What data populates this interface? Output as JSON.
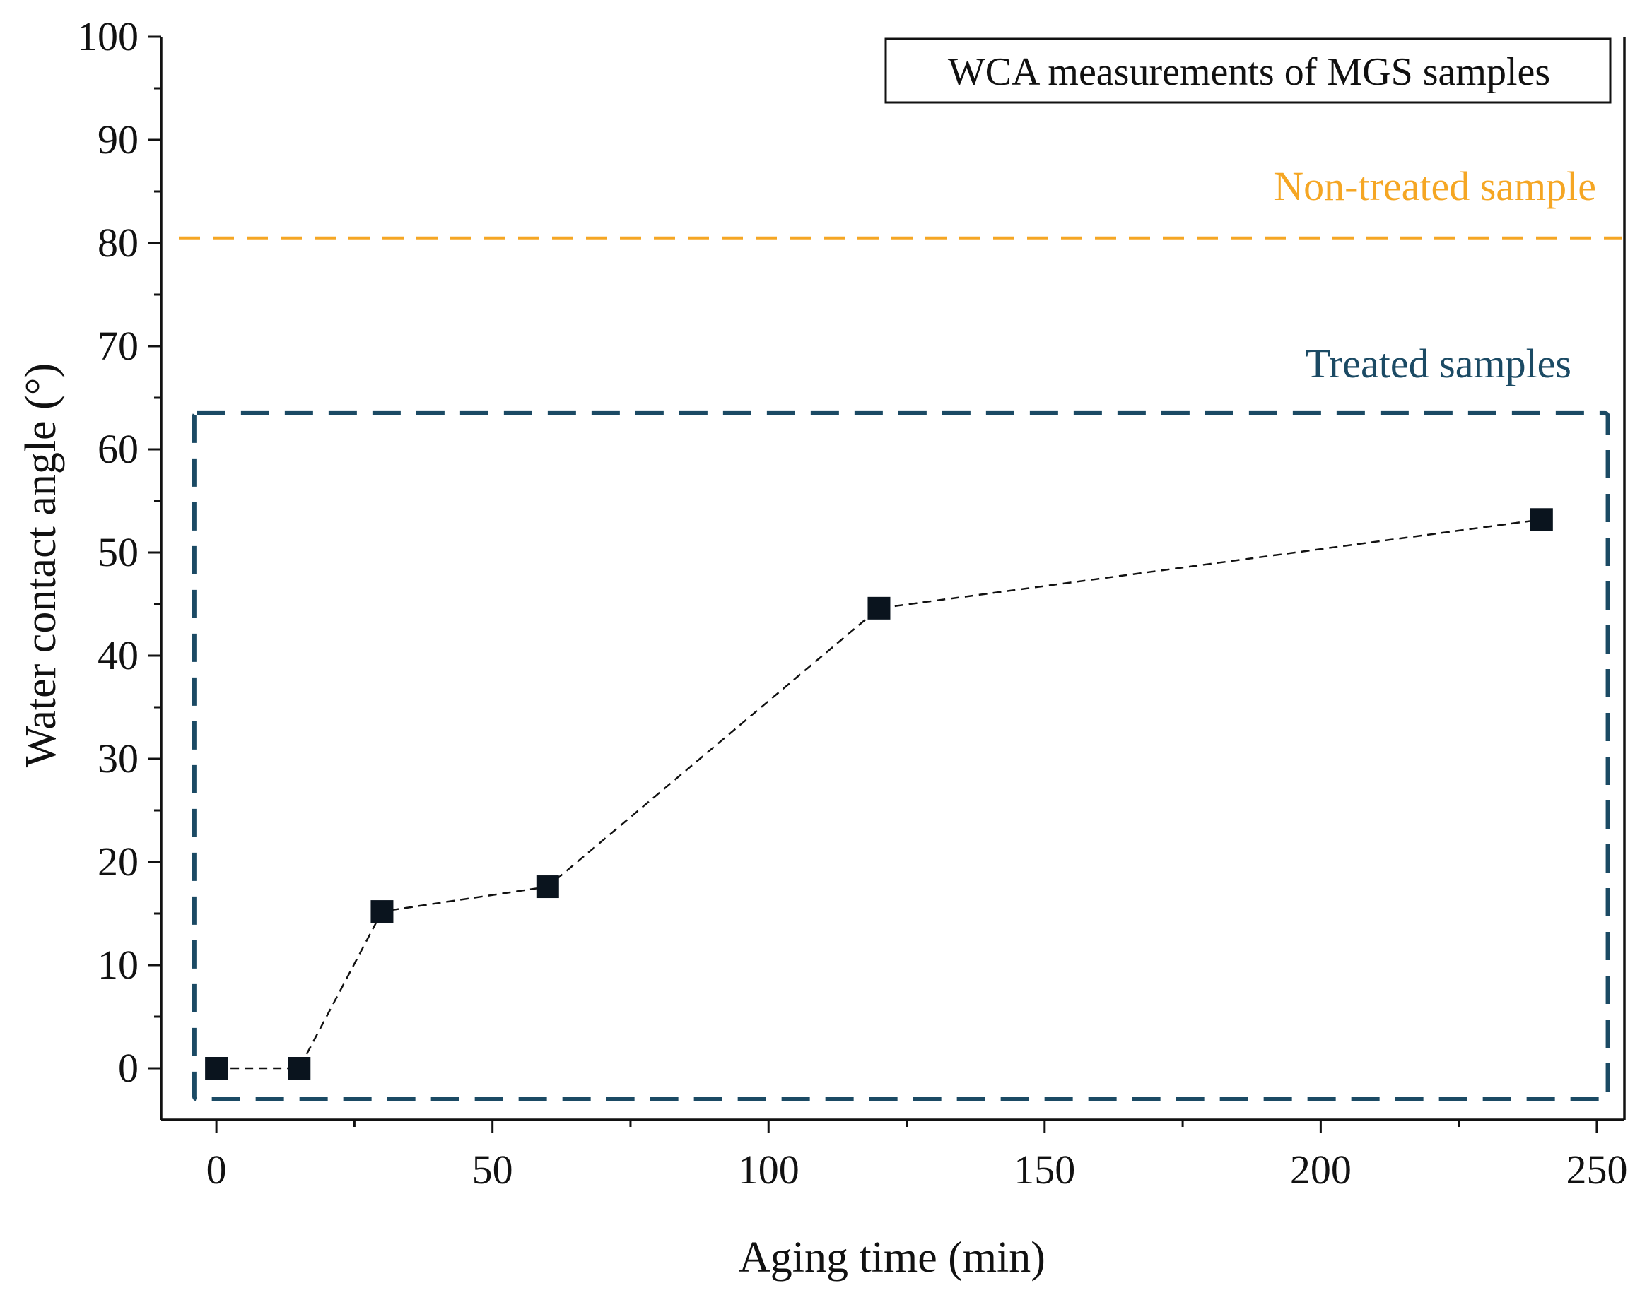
{
  "chart_data": {
    "type": "scatter",
    "title": "WCA measurements of MGS samples",
    "xlabel": "Aging time (min)",
    "ylabel": "Water contact angle (°)",
    "xlim": [
      -10,
      255
    ],
    "ylim": [
      -5,
      100
    ],
    "xticks": [
      0,
      50,
      100,
      150,
      200,
      250
    ],
    "yticks": [
      0,
      10,
      20,
      30,
      40,
      50,
      60,
      70,
      80,
      90,
      100
    ],
    "series": [
      {
        "name": "Treated samples",
        "color": "#0a141e",
        "marker": "square",
        "line": "dashed",
        "x": [
          0,
          15,
          30,
          60,
          120,
          240
        ],
        "y": [
          0,
          0,
          15.2,
          17.6,
          44.6,
          53.2
        ]
      }
    ],
    "reference_lines": [
      {
        "label": "Non-treated sample",
        "y": 80.5,
        "color": "#f5a623",
        "style": "dashed"
      }
    ],
    "regions": [
      {
        "label": "Treated samples",
        "x_range": [
          -4,
          252
        ],
        "y_range": [
          -3,
          63.5
        ],
        "color": "#1b4a64",
        "style": "dashed"
      }
    ]
  }
}
